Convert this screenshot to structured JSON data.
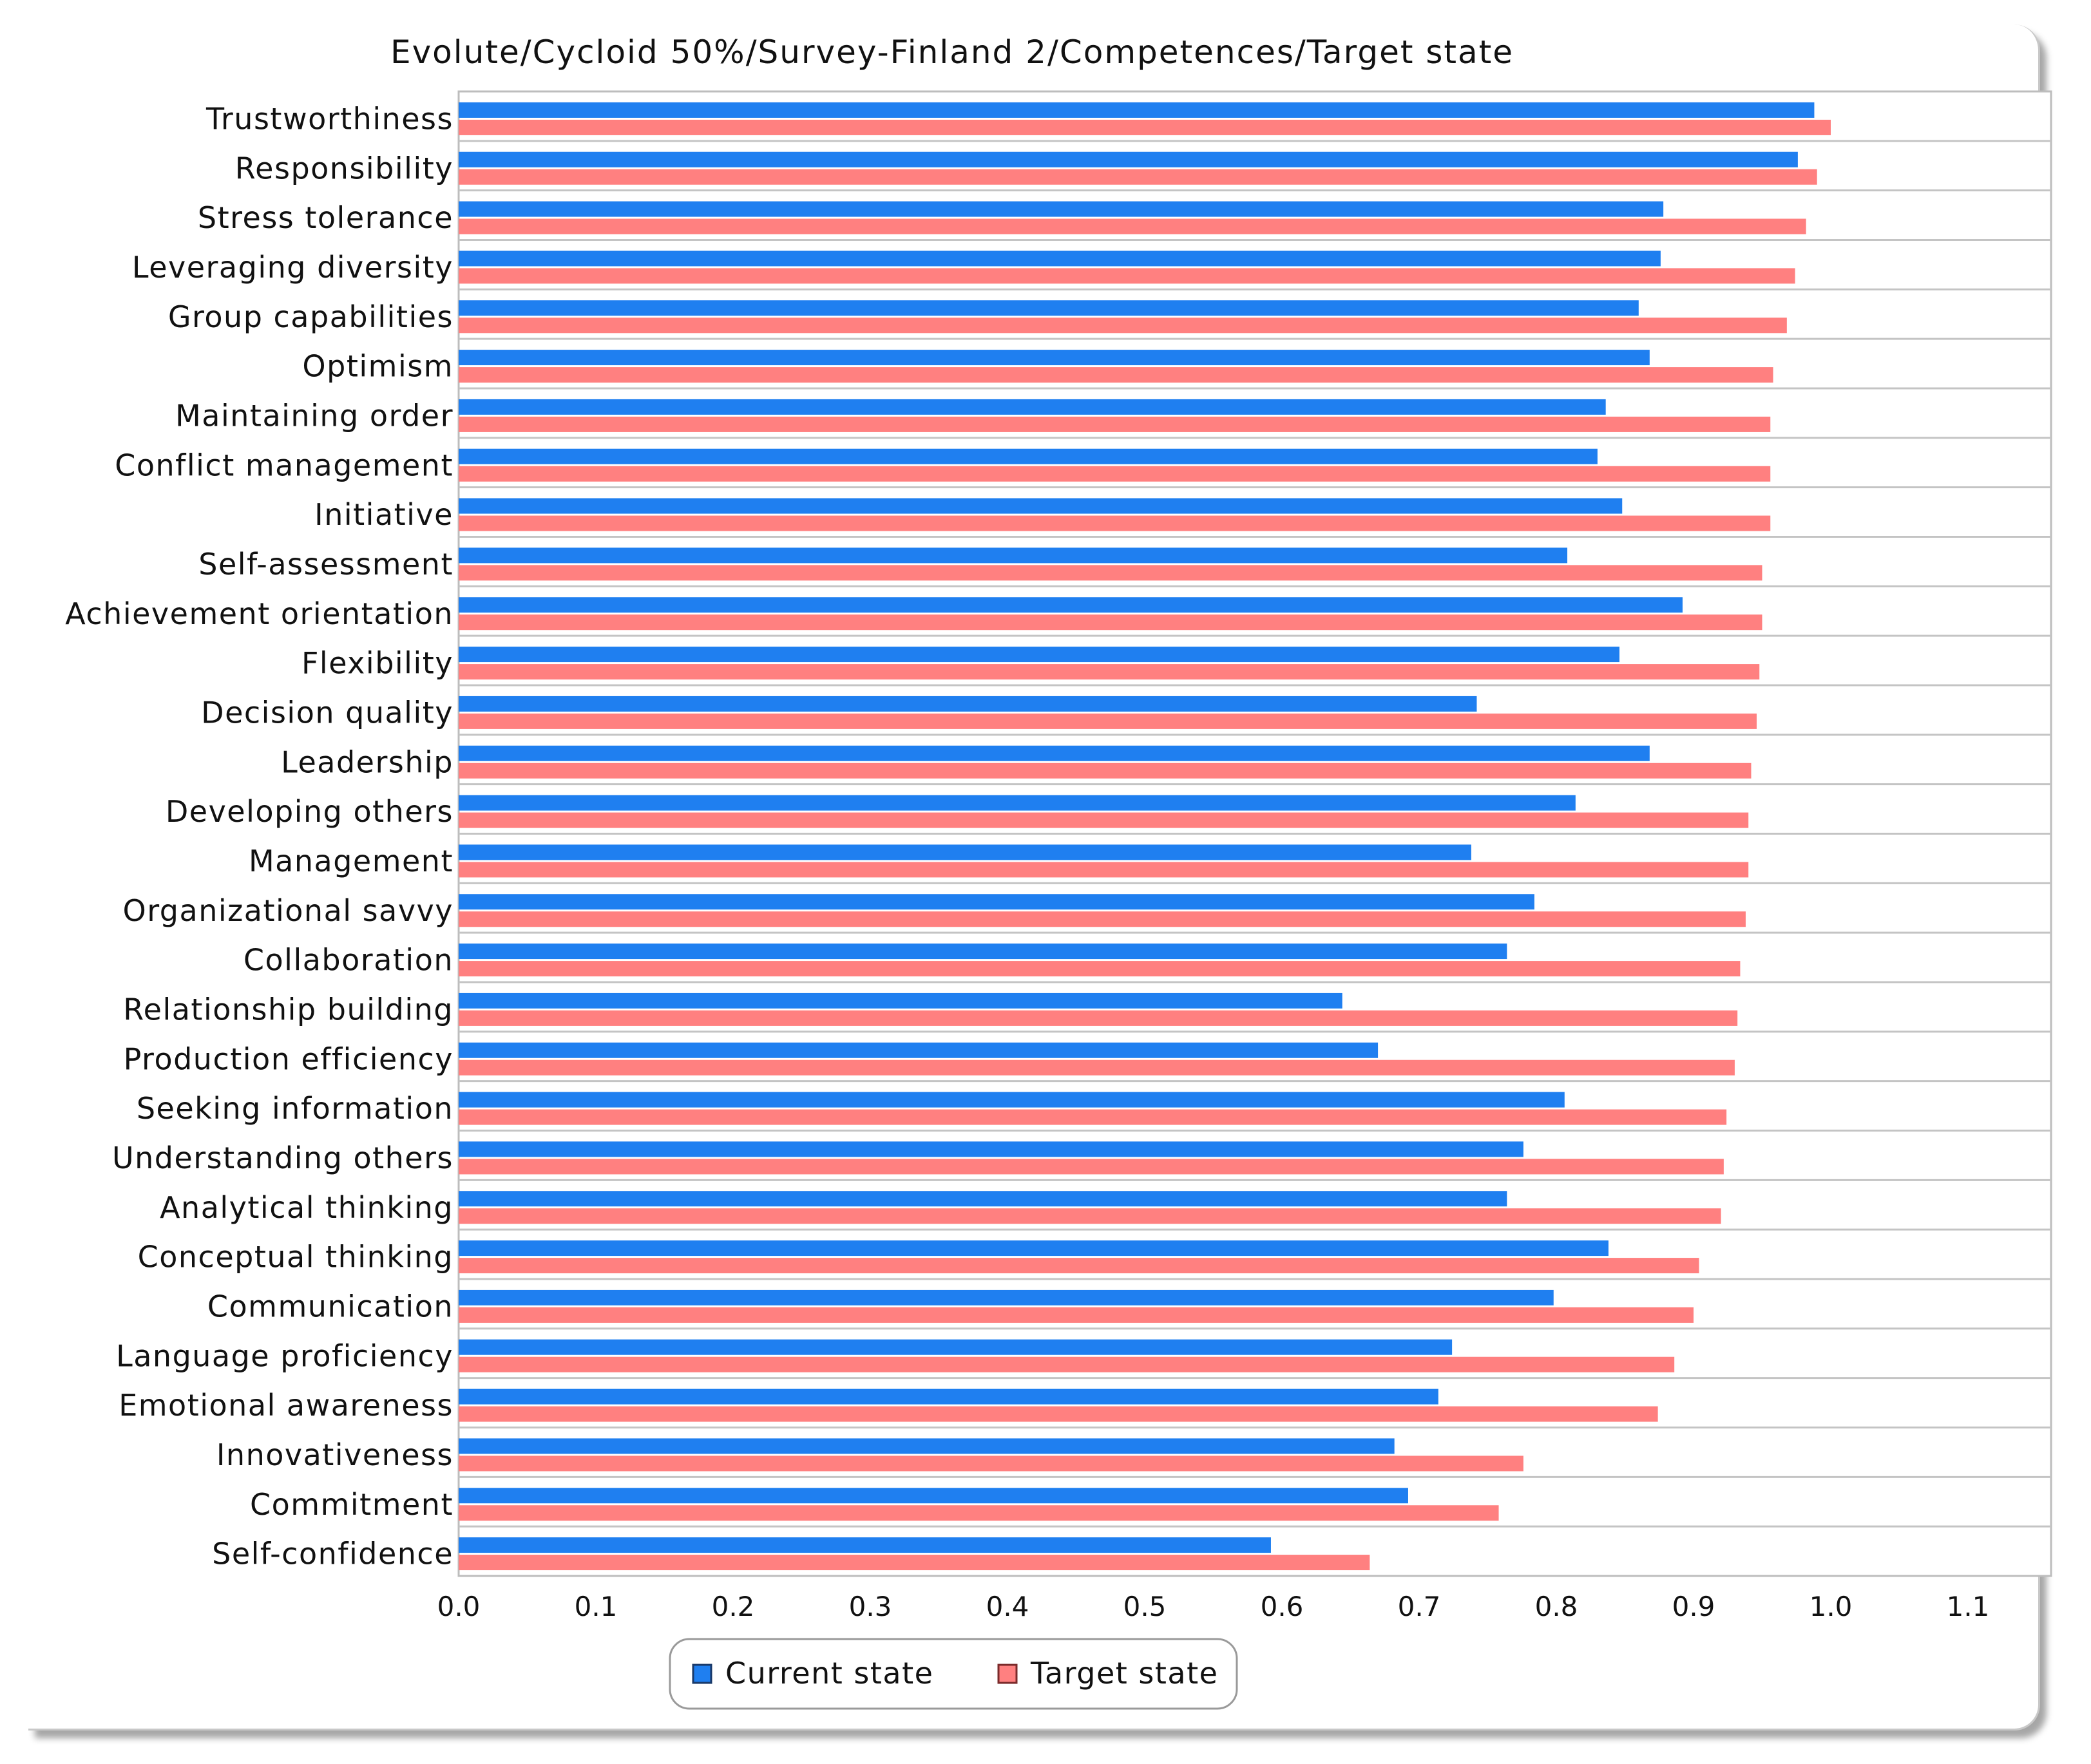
{
  "chart_data": {
    "type": "bar",
    "orientation": "horizontal",
    "title": "Evolute/Cycloid 50%/Survey-Finland 2/Competences/Target state",
    "xlabel": "",
    "ylabel": "",
    "xlim": [
      0,
      1.15
    ],
    "xticks": [
      "0.0",
      "0.1",
      "0.2",
      "0.3",
      "0.4",
      "0.5",
      "0.6",
      "0.7",
      "0.8",
      "0.9",
      "1.0",
      "1.1"
    ],
    "grid": true,
    "legend_position": "bottom",
    "categories": [
      "Trustworthiness",
      "Responsibility",
      "Stress tolerance",
      "Leveraging diversity",
      "Group capabilities",
      "Optimism",
      "Maintaining order",
      "Conflict management",
      "Initiative",
      "Self-assessment",
      "Achievement orientation",
      "Flexibility",
      "Decision quality",
      "Leadership",
      "Developing others",
      "Management",
      "Organizational savvy",
      "Collaboration",
      "Relationship building",
      "Production efficiency",
      "Seeking information",
      "Understanding others",
      "Analytical thinking",
      "Conceptual thinking",
      "Communication",
      "Language proficiency",
      "Emotional awareness",
      "Innovativeness",
      "Commitment",
      "Self-confidence"
    ],
    "series": [
      {
        "name": "Current state",
        "color": "#1f7ff0",
        "values": [
          0.988,
          0.976,
          0.878,
          0.876,
          0.86,
          0.868,
          0.836,
          0.83,
          0.848,
          0.808,
          0.892,
          0.846,
          0.742,
          0.868,
          0.814,
          0.738,
          0.784,
          0.764,
          0.644,
          0.67,
          0.806,
          0.776,
          0.764,
          0.838,
          0.798,
          0.724,
          0.714,
          0.682,
          0.692,
          0.592
        ]
      },
      {
        "name": "Target state",
        "color": "#ff8080",
        "values": [
          1.0,
          0.99,
          0.982,
          0.974,
          0.968,
          0.958,
          0.956,
          0.956,
          0.956,
          0.95,
          0.95,
          0.948,
          0.946,
          0.942,
          0.94,
          0.94,
          0.938,
          0.934,
          0.932,
          0.93,
          0.924,
          0.922,
          0.92,
          0.904,
          0.9,
          0.886,
          0.874,
          0.776,
          0.758,
          0.664
        ]
      }
    ]
  }
}
